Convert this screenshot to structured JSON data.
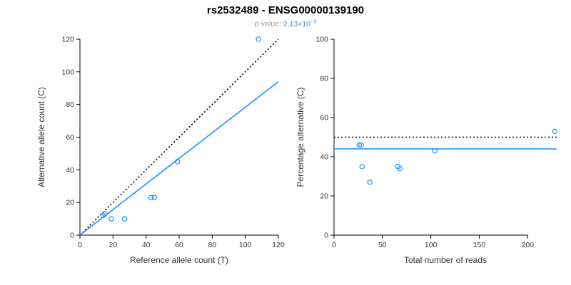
{
  "header": {
    "title": "rs2532489 - ENSG00000139190",
    "pvalue_label": "p-value:",
    "pvalue_mantissa": "2.13",
    "pvalue_times": "×10",
    "pvalue_exponent": "−3"
  },
  "colors": {
    "accent": "#1E90FF",
    "dotted_line": "#000000",
    "axis": "#000000",
    "tick_label": "#666666",
    "subtitle_label": "#9a9a9a",
    "subtitle_value": "#5b8ab5"
  },
  "chart_data": [
    {
      "type": "scatter",
      "name": "ref-vs-alt-scatter",
      "title": "",
      "xlabel": "Reference allele count (T)",
      "ylabel": "Alternative allele count (C)",
      "xlim": [
        0,
        120
      ],
      "ylim": [
        0,
        120
      ],
      "xticks": [
        0,
        20,
        40,
        60,
        80,
        100,
        120
      ],
      "yticks": [
        0,
        20,
        40,
        60,
        80,
        100,
        120
      ],
      "grid": false,
      "points": [
        [
          14,
          12
        ],
        [
          15,
          13
        ],
        [
          19,
          10
        ],
        [
          27,
          10
        ],
        [
          43,
          23
        ],
        [
          45,
          23
        ],
        [
          59,
          45
        ],
        [
          108,
          120
        ]
      ],
      "lines": [
        {
          "name": "identity-line-50pct",
          "style": "dotted",
          "color": "#000000",
          "from": [
            0,
            0
          ],
          "to": [
            120,
            120
          ]
        },
        {
          "name": "fit-line",
          "style": "solid",
          "color": "#1E90FF",
          "from": [
            0,
            0
          ],
          "to": [
            120,
            94
          ]
        }
      ]
    },
    {
      "type": "scatter",
      "name": "reads-vs-percentage-scatter",
      "title": "",
      "xlabel": "Total number of reads",
      "ylabel": "Percentage alternative (C)",
      "xlim": [
        0,
        230
      ],
      "ylim": [
        0,
        100
      ],
      "xticks": [
        0,
        50,
        100,
        150,
        200
      ],
      "yticks": [
        0,
        20,
        40,
        60,
        80,
        100
      ],
      "grid": false,
      "points": [
        [
          26,
          46
        ],
        [
          28,
          46
        ],
        [
          29,
          35
        ],
        [
          37,
          27
        ],
        [
          66,
          35
        ],
        [
          68,
          34
        ],
        [
          104,
          43
        ],
        [
          228,
          53
        ]
      ],
      "lines": [
        {
          "name": "fifty-percent-line",
          "style": "dotted",
          "color": "#000000",
          "from": [
            0,
            50
          ],
          "to": [
            230,
            50
          ]
        },
        {
          "name": "mean-percentage-line",
          "style": "solid",
          "color": "#1E90FF",
          "from": [
            0,
            44
          ],
          "to": [
            230,
            44
          ]
        }
      ]
    }
  ]
}
